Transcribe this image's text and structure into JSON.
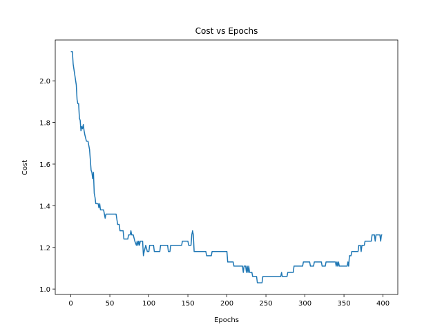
{
  "chart_data": {
    "type": "line",
    "title": "Cost vs Epochs",
    "xlabel": "Epochs",
    "ylabel": "Cost",
    "x": [
      0,
      2,
      3,
      5,
      7,
      8,
      9,
      10,
      11,
      12,
      13,
      14,
      15,
      16,
      17,
      18,
      20,
      22,
      23,
      24,
      25,
      26,
      27,
      28,
      29,
      30,
      31,
      32,
      35,
      36,
      37,
      38,
      42,
      43,
      44,
      45,
      58,
      60,
      62,
      63,
      67,
      68,
      73,
      74,
      76,
      77,
      78,
      80,
      82,
      84,
      85,
      86,
      87,
      88,
      89,
      92,
      93,
      94,
      96,
      98,
      100,
      101,
      106,
      107,
      114,
      115,
      124,
      125,
      127,
      128,
      142,
      143,
      150,
      151,
      154,
      155,
      156,
      157,
      158,
      173,
      174,
      180,
      181,
      200,
      201,
      208,
      209,
      220,
      221,
      222,
      224,
      225,
      226,
      227,
      228,
      229,
      232,
      233,
      238,
      239,
      245,
      246,
      269,
      270,
      271,
      277,
      278,
      285,
      286,
      297,
      298,
      306,
      307,
      311,
      312,
      321,
      322,
      326,
      327,
      339,
      340,
      341,
      342,
      343,
      344,
      354,
      355,
      356,
      357,
      359,
      360,
      368,
      369,
      371,
      372,
      373,
      376,
      377,
      385,
      386,
      389,
      390,
      391,
      396,
      397,
      398,
      399
    ],
    "series": [
      {
        "name": "Cost",
        "color": "#1f77b4",
        "values": [
          2.14,
          2.14,
          2.08,
          2.03,
          1.98,
          1.91,
          1.89,
          1.89,
          1.82,
          1.81,
          1.76,
          1.78,
          1.77,
          1.79,
          1.76,
          1.74,
          1.71,
          1.71,
          1.69,
          1.67,
          1.62,
          1.57,
          1.56,
          1.53,
          1.56,
          1.46,
          1.44,
          1.41,
          1.41,
          1.39,
          1.41,
          1.38,
          1.38,
          1.36,
          1.34,
          1.36,
          1.36,
          1.31,
          1.31,
          1.28,
          1.28,
          1.24,
          1.24,
          1.26,
          1.26,
          1.28,
          1.26,
          1.26,
          1.23,
          1.21,
          1.23,
          1.21,
          1.23,
          1.21,
          1.23,
          1.23,
          1.16,
          1.18,
          1.21,
          1.18,
          1.18,
          1.21,
          1.21,
          1.18,
          1.18,
          1.21,
          1.21,
          1.18,
          1.18,
          1.21,
          1.21,
          1.23,
          1.23,
          1.21,
          1.21,
          1.26,
          1.28,
          1.26,
          1.18,
          1.18,
          1.16,
          1.16,
          1.18,
          1.18,
          1.13,
          1.13,
          1.11,
          1.11,
          1.08,
          1.11,
          1.11,
          1.08,
          1.11,
          1.08,
          1.11,
          1.08,
          1.08,
          1.06,
          1.06,
          1.03,
          1.03,
          1.06,
          1.06,
          1.08,
          1.06,
          1.06,
          1.08,
          1.08,
          1.11,
          1.11,
          1.13,
          1.13,
          1.11,
          1.11,
          1.13,
          1.13,
          1.11,
          1.11,
          1.13,
          1.13,
          1.11,
          1.13,
          1.11,
          1.13,
          1.11,
          1.11,
          1.13,
          1.11,
          1.16,
          1.16,
          1.18,
          1.18,
          1.21,
          1.21,
          1.18,
          1.21,
          1.21,
          1.23,
          1.23,
          1.26,
          1.26,
          1.23,
          1.26,
          1.26,
          1.23,
          1.26,
          1.26
        ]
      }
    ],
    "xlim": [
      -19.95,
      418.95
    ],
    "xticks": [
      0,
      50,
      100,
      150,
      200,
      250,
      300,
      350,
      400
    ],
    "ylim": [
      0.974,
      2.196
    ],
    "yticks": [
      {
        "value": 1,
        "label": "1.0"
      },
      1.2,
      1.4,
      1.6,
      1.8,
      {
        "value": 2,
        "label": "2.0"
      }
    ]
  }
}
